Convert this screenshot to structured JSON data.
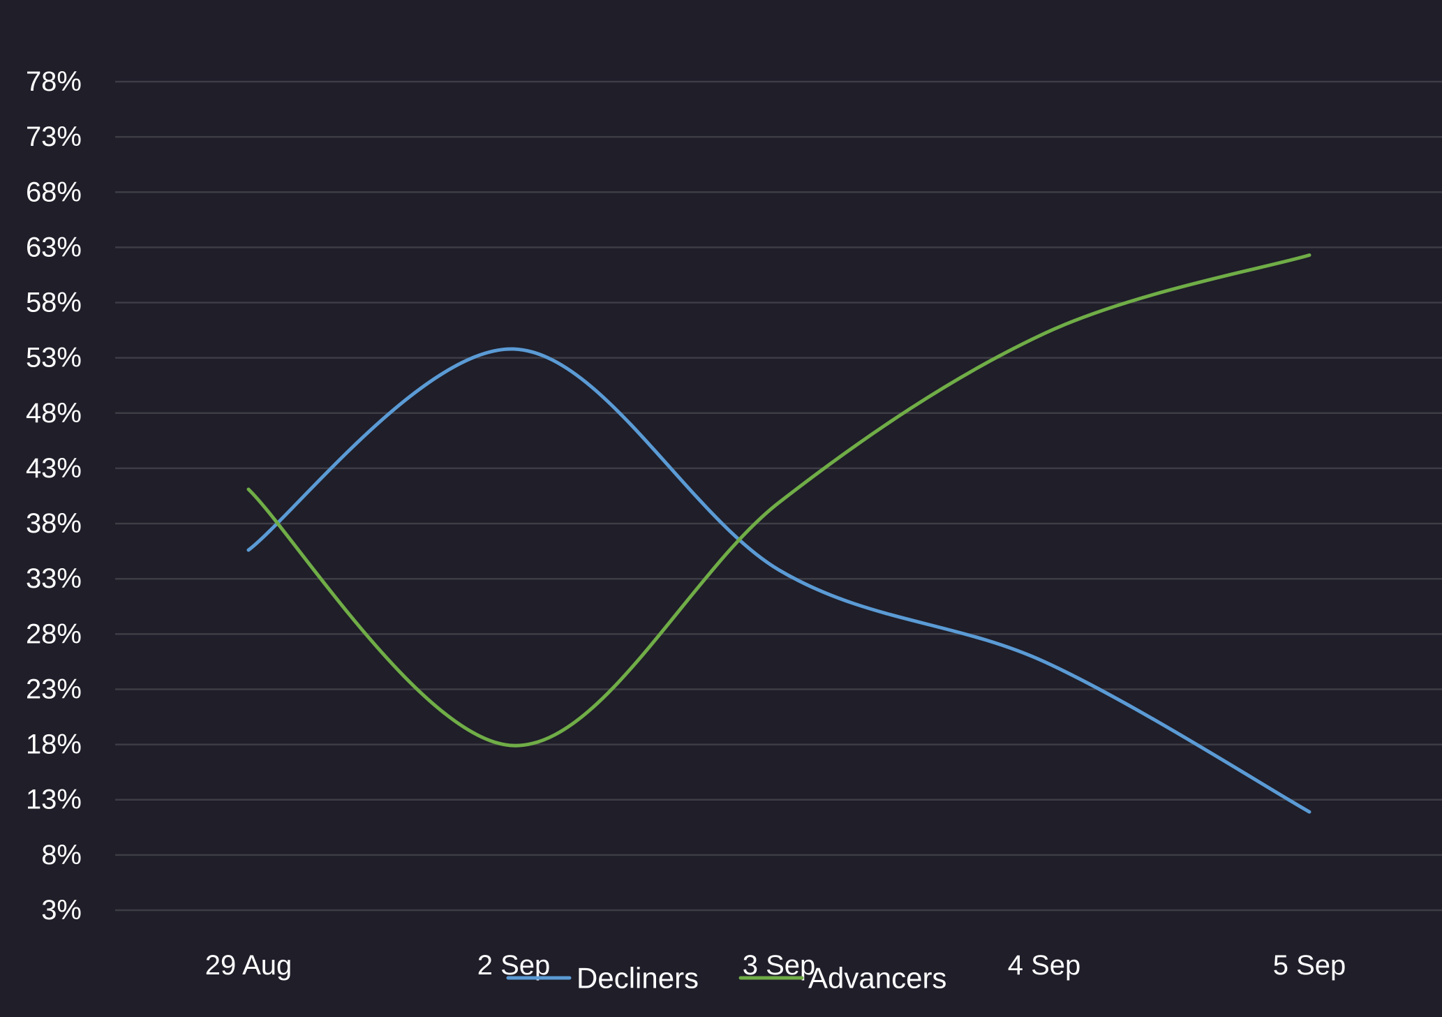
{
  "chart_data": {
    "type": "line",
    "title": "",
    "xlabel": "",
    "ylabel": "",
    "categories": [
      "29 Aug",
      "2 Sep",
      "3 Sep",
      "4 Sep",
      "5 Sep"
    ],
    "y_ticks": [
      "78%",
      "73%",
      "68%",
      "63%",
      "58%",
      "53%",
      "48%",
      "43%",
      "38%",
      "33%",
      "28%",
      "23%",
      "18%",
      "13%",
      "8%",
      "3%"
    ],
    "ylim": [
      3,
      78
    ],
    "y_unit": "%",
    "grid": true,
    "smooth": true,
    "legend_position": "bottom-center",
    "series": [
      {
        "name": "Decliners",
        "color": "#5b9bd5",
        "values": [
          35.6,
          53.8,
          33.8,
          25.5,
          11.9
        ]
      },
      {
        "name": "Advancers",
        "color": "#70ad47",
        "values": [
          41.1,
          17.9,
          39.9,
          55.2,
          62.3
        ]
      }
    ],
    "colors": {
      "background": "#1f1e29",
      "grid": "#3e3d45",
      "text": "#ffffff"
    }
  }
}
